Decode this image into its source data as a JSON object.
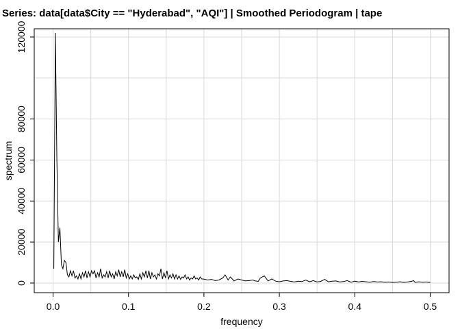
{
  "chart_data": {
    "type": "line",
    "title": "Series: data[data$City == \"Hyderabad\", \"AQI\"]  |  Smoothed Periodogram  |  tape",
    "xlabel": "frequency",
    "ylabel": "spectrum",
    "xlim": [
      -0.025,
      0.525
    ],
    "ylim": [
      -4700,
      124000
    ],
    "x_ticks": [
      0,
      0.1,
      0.2,
      0.3,
      0.4,
      0.5
    ],
    "x_tick_labels": [
      "0.0",
      "0.1",
      "0.2",
      "0.3",
      "0.4",
      "0.5"
    ],
    "y_ticks": [
      0,
      20000,
      40000,
      60000,
      80000,
      120000
    ],
    "y_tick_labels": [
      "0",
      "20000",
      "40000",
      "60000",
      "80000",
      "120000"
    ],
    "x_grid": [
      0,
      0.05,
      0.1,
      0.15,
      0.2,
      0.25,
      0.3,
      0.35,
      0.4,
      0.45,
      0.5
    ],
    "y_grid": [
      0,
      20000,
      40000,
      60000,
      80000,
      100000,
      120000
    ],
    "grid": true,
    "series": [
      {
        "x": [
          0.001,
          0.003,
          0.005,
          0.007,
          0.009,
          0.011,
          0.013,
          0.015,
          0.017,
          0.019,
          0.021,
          0.023,
          0.025,
          0.027,
          0.029,
          0.031,
          0.033,
          0.035,
          0.037,
          0.039,
          0.041,
          0.043,
          0.045,
          0.047,
          0.049,
          0.051,
          0.053,
          0.055,
          0.057,
          0.059,
          0.061,
          0.063,
          0.065,
          0.067,
          0.069,
          0.071,
          0.073,
          0.075,
          0.077,
          0.079,
          0.081,
          0.083,
          0.085,
          0.087,
          0.089,
          0.091,
          0.093,
          0.095,
          0.097,
          0.099,
          0.101,
          0.103,
          0.105,
          0.107,
          0.109,
          0.111,
          0.113,
          0.115,
          0.117,
          0.119,
          0.121,
          0.123,
          0.125,
          0.127,
          0.129,
          0.131,
          0.133,
          0.135,
          0.137,
          0.139,
          0.141,
          0.143,
          0.145,
          0.147,
          0.149,
          0.151,
          0.153,
          0.155,
          0.157,
          0.159,
          0.161,
          0.163,
          0.165,
          0.167,
          0.169,
          0.171,
          0.173,
          0.175,
          0.177,
          0.179,
          0.181,
          0.183,
          0.185,
          0.187,
          0.189,
          0.191,
          0.193,
          0.195,
          0.197,
          0.199,
          0.205,
          0.21,
          0.215,
          0.22,
          0.225,
          0.228,
          0.232,
          0.235,
          0.24,
          0.245,
          0.25,
          0.255,
          0.26,
          0.265,
          0.268,
          0.272,
          0.275,
          0.28,
          0.285,
          0.29,
          0.295,
          0.3,
          0.305,
          0.31,
          0.315,
          0.32,
          0.325,
          0.33,
          0.335,
          0.34,
          0.345,
          0.35,
          0.355,
          0.36,
          0.365,
          0.37,
          0.375,
          0.38,
          0.385,
          0.39,
          0.395,
          0.4,
          0.405,
          0.41,
          0.415,
          0.42,
          0.425,
          0.43,
          0.435,
          0.44,
          0.445,
          0.45,
          0.455,
          0.46,
          0.465,
          0.47,
          0.475,
          0.478,
          0.48,
          0.485,
          0.49,
          0.495,
          0.5
        ],
        "y": [
          7000,
          122000,
          60000,
          20000,
          27000,
          9000,
          7000,
          11000,
          10000,
          4000,
          3000,
          6000,
          3500,
          6000,
          2500,
          3500,
          2000,
          4500,
          2000,
          5000,
          3000,
          6000,
          2500,
          5500,
          3000,
          6000,
          4500,
          6000,
          2500,
          5000,
          3000,
          7000,
          2500,
          4000,
          3000,
          5500,
          2500,
          6000,
          3000,
          4500,
          2000,
          5500,
          3500,
          6500,
          3000,
          5500,
          3000,
          6500,
          2500,
          4500,
          2000,
          3500,
          2000,
          4000,
          2500,
          3000,
          1800,
          4500,
          2000,
          5000,
          3000,
          6000,
          2500,
          6000,
          2000,
          5000,
          3000,
          4000,
          2000,
          4500,
          3500,
          7000,
          2000,
          5000,
          2500,
          6000,
          2000,
          4000,
          2500,
          4500,
          2000,
          4000,
          2000,
          3500,
          1800,
          3000,
          2500,
          4000,
          2000,
          3000,
          1500,
          2500,
          2000,
          3500,
          2000,
          2500,
          1500,
          3000,
          2000,
          2000,
          1500,
          1800,
          1200,
          1500,
          2500,
          4000,
          1500,
          3000,
          1000,
          2000,
          1500,
          1000,
          1200,
          1500,
          1000,
          800,
          2500,
          3500,
          1000,
          2000,
          900,
          600,
          1000,
          1200,
          800,
          500,
          900,
          700,
          1500,
          600,
          1200,
          500,
          800,
          1800,
          600,
          900,
          1000,
          500,
          700,
          1200,
          400,
          900,
          500,
          800,
          600,
          400,
          700,
          500,
          600,
          400,
          500,
          300,
          400,
          600,
          300,
          500,
          800,
          1200,
          300,
          600,
          400,
          500,
          200
        ]
      }
    ]
  }
}
